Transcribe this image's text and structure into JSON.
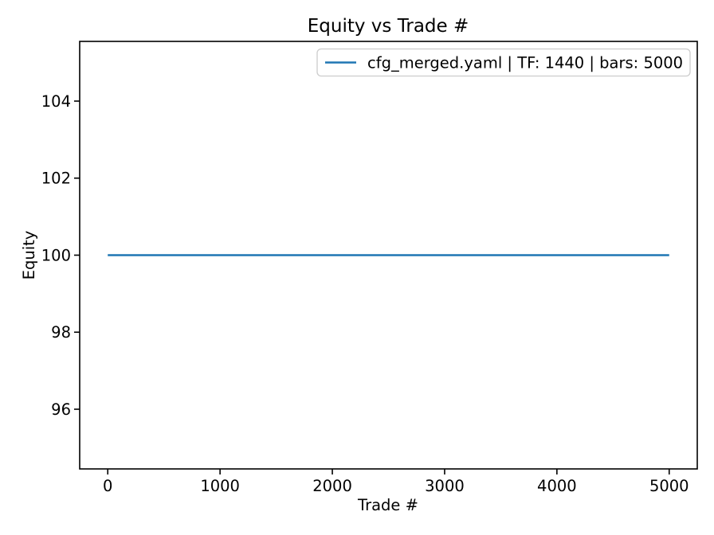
{
  "figure": {
    "background": "#ffffff",
    "text_color": "#000000",
    "spine_color": "#000000",
    "legend_border_color": "#cccccc",
    "legend_background": "#ffffff"
  },
  "chart_data": {
    "type": "line",
    "title": "Equity vs Trade #",
    "xlabel": "Trade #",
    "ylabel": "Equity",
    "xlim": [
      -250,
      5250
    ],
    "ylim": [
      94.45,
      105.55
    ],
    "xticks": [
      0,
      1000,
      2000,
      3000,
      4000,
      5000
    ],
    "yticks": [
      96,
      98,
      100,
      102,
      104
    ],
    "grid": false,
    "legend_position": "upper right",
    "series": [
      {
        "name": "cfg_merged.yaml | TF: 1440 | bars: 5000",
        "color": "#1f77b4",
        "x": [
          0,
          5000
        ],
        "y": [
          100,
          100
        ]
      }
    ]
  }
}
